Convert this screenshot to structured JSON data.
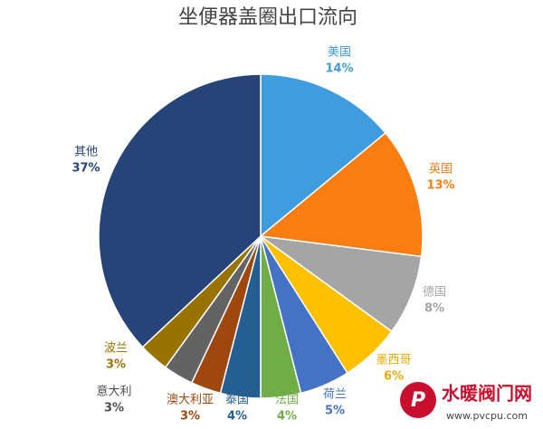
{
  "chart_data": {
    "type": "pie",
    "title": "坐便器盖圈出口流向",
    "categories": [
      "美国",
      "英国",
      "德国",
      "墨西哥",
      "荷兰",
      "法国",
      "泰国",
      "澳大利亚",
      "意大利",
      "波兰",
      "其他"
    ],
    "values": [
      14,
      13,
      8,
      6,
      5,
      4,
      4,
      3,
      3,
      3,
      37
    ],
    "value_labels": [
      "14%",
      "13%",
      "8%",
      "6%",
      "5%",
      "4%",
      "4%",
      "3%",
      "3%",
      "3%",
      "37%"
    ],
    "colors": [
      "#3f9ddd",
      "#fa7d12",
      "#a5a5a5",
      "#ffc000",
      "#4472c4",
      "#70ad47",
      "#255e91",
      "#9e480e",
      "#636363",
      "#997300",
      "#264478"
    ],
    "label_colors": [
      "#3f9ddd",
      "#fa7d12",
      "#a5a5a5",
      "#e6ac00",
      "#4472c4",
      "#70ad47",
      "#255e91",
      "#9e480e",
      "#4d4d4d",
      "#997300",
      "#264478"
    ]
  },
  "watermark": {
    "logo_text": "水暖阀门网",
    "url": "www.pvcpu.com"
  }
}
